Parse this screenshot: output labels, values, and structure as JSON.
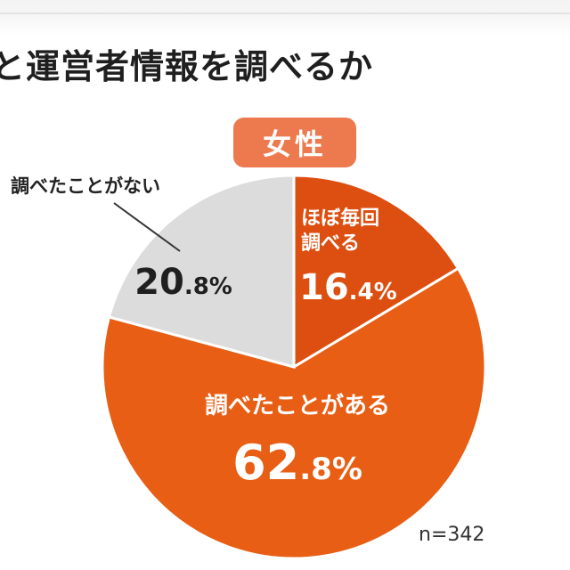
{
  "title": "と運営者情報を調べるか",
  "badge": "女性",
  "sample": "n=342",
  "colors": {
    "seg_almost_every_time": "#dd4f10",
    "seg_have_checked": "#e85e14",
    "seg_never": "#dcdcdc",
    "badge": "#ec7a4e"
  },
  "chart_data": {
    "type": "pie",
    "title": "と運営者情報を調べるか",
    "subtitle": "女性",
    "labels": [
      "ほぼ毎回調べる",
      "調べたことがある",
      "調べたことがない"
    ],
    "values": [
      16.4,
      62.8,
      20.8
    ],
    "value_labels": [
      {
        "major": "16",
        "minor": ".4%"
      },
      {
        "major": "62",
        "minor": ".8%"
      },
      {
        "major": "20",
        "minor": ".8%"
      }
    ],
    "label_lines": [
      [
        "ほぼ毎回",
        "調べる"
      ],
      [
        "調べたことがある"
      ],
      [
        "調べたことがない"
      ]
    ],
    "start": "12 o'clock",
    "direction": "clockwise",
    "legend": "none",
    "note": "n=342"
  }
}
